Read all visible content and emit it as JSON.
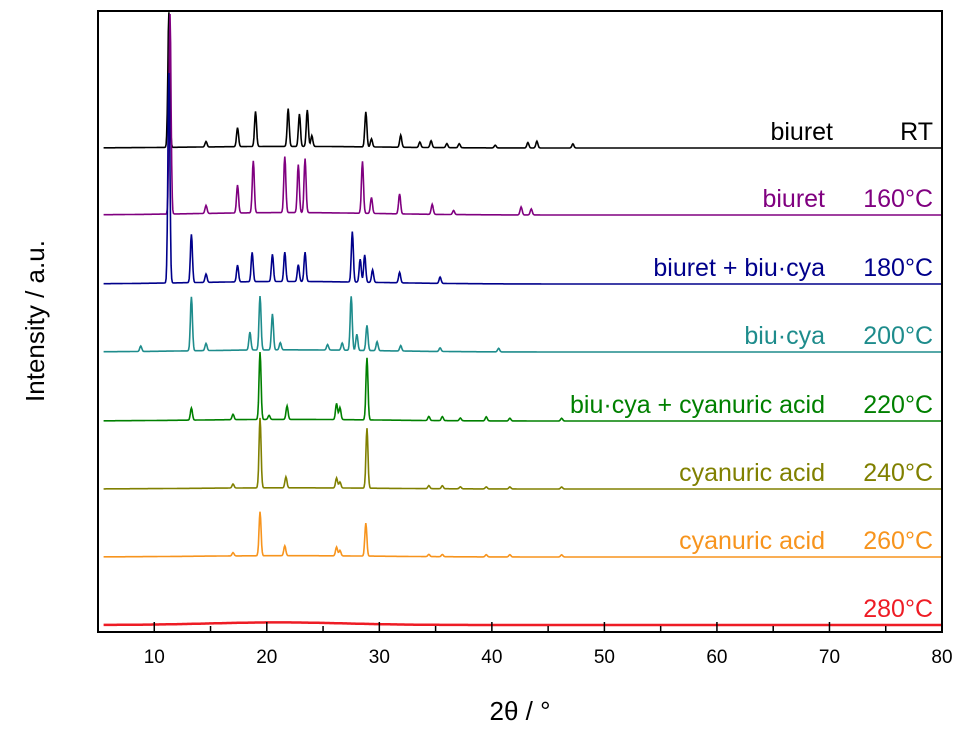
{
  "chart_data": {
    "type": "line",
    "xlabel": "2θ / °",
    "ylabel": "Intensity / a.u.",
    "xlim": [
      5,
      80
    ],
    "x_ticks": [
      "10",
      "20",
      "30",
      "40",
      "50",
      "60",
      "70",
      "80"
    ],
    "stacked_offset": true,
    "grid": false,
    "legend": "none (inline labels at right)",
    "series": [
      {
        "label": "biuret",
        "temperature": "RT",
        "color": "#000000",
        "peaks": [
          [
            11.3,
            10.0
          ],
          [
            14.6,
            0.4
          ],
          [
            17.4,
            1.4
          ],
          [
            19.0,
            2.6
          ],
          [
            21.9,
            2.8
          ],
          [
            22.9,
            2.4
          ],
          [
            23.6,
            2.7
          ],
          [
            24.0,
            0.8
          ],
          [
            28.8,
            2.6
          ],
          [
            29.3,
            0.6
          ],
          [
            31.9,
            0.9
          ],
          [
            33.6,
            0.4
          ],
          [
            34.6,
            0.5
          ],
          [
            36.0,
            0.3
          ],
          [
            37.1,
            0.3
          ],
          [
            40.3,
            0.2
          ],
          [
            43.2,
            0.4
          ],
          [
            44.0,
            0.5
          ],
          [
            47.2,
            0.3
          ]
        ]
      },
      {
        "label": "biuret",
        "temperature": "160°C",
        "color": "#800080",
        "peaks": [
          [
            11.4,
            10.0
          ],
          [
            14.6,
            0.4
          ],
          [
            17.4,
            1.4
          ],
          [
            18.8,
            2.6
          ],
          [
            21.6,
            2.8
          ],
          [
            22.8,
            2.4
          ],
          [
            23.4,
            2.7
          ],
          [
            28.5,
            2.6
          ],
          [
            29.3,
            0.8
          ],
          [
            31.8,
            1.0
          ],
          [
            34.7,
            0.5
          ],
          [
            36.6,
            0.2
          ],
          [
            42.6,
            0.4
          ],
          [
            43.5,
            0.3
          ]
        ]
      },
      {
        "label": "biuret + biu·cya",
        "temperature": "180°C",
        "color": "#00008B",
        "peaks": [
          [
            11.3,
            10.0
          ],
          [
            13.3,
            2.3
          ],
          [
            14.6,
            0.4
          ],
          [
            17.4,
            0.8
          ],
          [
            18.7,
            1.4
          ],
          [
            20.5,
            1.3
          ],
          [
            21.6,
            1.4
          ],
          [
            22.8,
            0.8
          ],
          [
            23.4,
            1.4
          ],
          [
            27.6,
            2.4
          ],
          [
            28.3,
            1.1
          ],
          [
            28.7,
            1.3
          ],
          [
            29.4,
            0.6
          ],
          [
            31.8,
            0.5
          ],
          [
            35.4,
            0.3
          ]
        ]
      },
      {
        "label": "biu·cya",
        "temperature": "200°C",
        "color": "#1E8C8C",
        "peaks": [
          [
            8.8,
            0.3
          ],
          [
            13.3,
            3.0
          ],
          [
            14.6,
            0.4
          ],
          [
            18.5,
            1.0
          ],
          [
            19.4,
            3.0
          ],
          [
            20.5,
            2.0
          ],
          [
            21.2,
            0.4
          ],
          [
            25.4,
            0.3
          ],
          [
            26.7,
            0.4
          ],
          [
            27.5,
            3.0
          ],
          [
            28.0,
            0.9
          ],
          [
            28.9,
            1.4
          ],
          [
            29.8,
            0.5
          ],
          [
            31.9,
            0.3
          ],
          [
            35.4,
            0.2
          ],
          [
            40.6,
            0.2
          ]
        ]
      },
      {
        "label": "biu·cya + cyanuric acid",
        "temperature": "220°C",
        "color": "#008000",
        "peaks": [
          [
            13.3,
            0.9
          ],
          [
            17.0,
            0.4
          ],
          [
            19.4,
            5.0
          ],
          [
            20.2,
            0.3
          ],
          [
            21.8,
            1.0
          ],
          [
            26.2,
            1.2
          ],
          [
            26.5,
            0.9
          ],
          [
            28.9,
            4.6
          ],
          [
            34.4,
            0.3
          ],
          [
            35.6,
            0.3
          ],
          [
            37.2,
            0.2
          ],
          [
            39.5,
            0.3
          ],
          [
            41.6,
            0.2
          ],
          [
            46.2,
            0.2
          ]
        ]
      },
      {
        "label": "cyanuric acid",
        "temperature": "240°C",
        "color": "#808000",
        "peaks": [
          [
            17.0,
            0.4
          ],
          [
            19.4,
            7.0
          ],
          [
            21.7,
            1.1
          ],
          [
            26.2,
            1.0
          ],
          [
            26.5,
            0.6
          ],
          [
            28.9,
            6.0
          ],
          [
            34.4,
            0.3
          ],
          [
            35.6,
            0.3
          ],
          [
            37.2,
            0.2
          ],
          [
            39.5,
            0.2
          ],
          [
            41.6,
            0.2
          ],
          [
            46.2,
            0.2
          ]
        ]
      },
      {
        "label": "cyanuric acid",
        "temperature": "260°C",
        "color": "#F7941D",
        "peaks": [
          [
            17.0,
            0.3
          ],
          [
            19.4,
            4.0
          ],
          [
            21.6,
            0.9
          ],
          [
            26.2,
            0.8
          ],
          [
            26.5,
            0.5
          ],
          [
            28.8,
            3.0
          ],
          [
            34.4,
            0.2
          ],
          [
            35.6,
            0.2
          ],
          [
            39.5,
            0.2
          ],
          [
            41.6,
            0.2
          ],
          [
            46.2,
            0.2
          ]
        ]
      },
      {
        "label": "",
        "temperature": "280°C",
        "color": "#EE1C25",
        "peaks": [],
        "amorphous_hump": true
      }
    ]
  }
}
